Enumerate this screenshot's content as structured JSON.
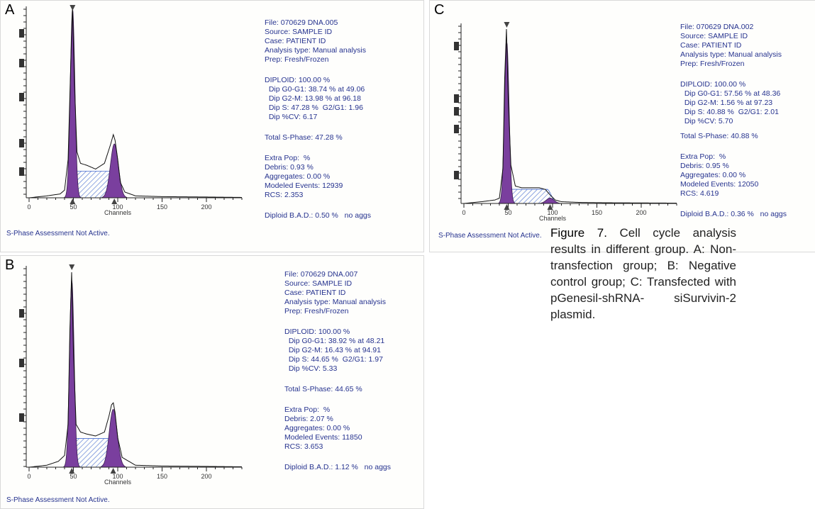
{
  "panels": [
    {
      "letter": "A",
      "file": "File: 070629 DNA.005",
      "source": "Source: SAMPLE ID",
      "case": "Case: PATIENT ID",
      "analysis": "Analysis type: Manual analysis",
      "prep": "Prep: Fresh/Frozen",
      "diploid": "DIPLOID: 100.00 %",
      "g0g1": "  Dip G0-G1: 38.74 % at 49.06",
      "g2m": "  Dip G2-M: 13.98 % at 96.18",
      "s": "  Dip S: 47.28 %  G2/G1: 1.96",
      "cv": "  Dip %CV: 6.17",
      "total_s": "Total S-Phase: 47.28 %",
      "extra_pop": "Extra Pop:  %",
      "debris": "Debris: 0.93 %",
      "aggregates": "Aggregates: 0.00 %",
      "modeled": "Modeled Events: 12939",
      "rcs": "RCS: 2.353",
      "bad": "Diploid B.A.D.: 0.50 %   no aggs",
      "assessment": "S-Phase Assessment Not Active.",
      "x_label": "Channels",
      "x_ticks": [
        "0",
        "50",
        "100",
        "150",
        "200"
      ]
    },
    {
      "letter": "B",
      "file": "File: 070629 DNA.007",
      "source": "Source: SAMPLE ID",
      "case": "Case: PATIENT ID",
      "analysis": "Analysis type: Manual analysis",
      "prep": "Prep: Fresh/Frozen",
      "diploid": "DIPLOID: 100.00 %",
      "g0g1": "  Dip G0-G1: 38.92 % at 48.21",
      "g2m": "  Dip G2-M: 16.43 % at 94.91",
      "s": "  Dip S: 44.65 %  G2/G1: 1.97",
      "cv": "  Dip %CV: 5.33",
      "total_s": "Total S-Phase: 44.65 %",
      "extra_pop": "Extra Pop:  %",
      "debris": "Debris: 2.07 %",
      "aggregates": "Aggregates: 0.00 %",
      "modeled": "Modeled Events: 11850",
      "rcs": "RCS: 3.653",
      "bad": "Diploid B.A.D.: 1.12 %   no aggs",
      "assessment": "S-Phase Assessment Not Active.",
      "x_label": "Channels",
      "x_ticks": [
        "0",
        "50",
        "100",
        "150",
        "200"
      ]
    },
    {
      "letter": "C",
      "file": "File: 070629 DNA.002",
      "source": "Source: SAMPLE ID",
      "case": "Case: PATIENT ID",
      "analysis": "Analysis type: Manual analysis",
      "prep": "Prep: Fresh/Frozen",
      "diploid": "DIPLOID: 100.00 %",
      "g0g1": "  Dip G0-G1: 57.56 % at 48.36",
      "g2m": "  Dip G2-M: 1.56 % at 97.23",
      "s": "  Dip S: 40.88 %  G2/G1: 2.01",
      "cv": "  Dip %CV: 5.70",
      "total_s": "Total S-Phase: 40.88 %",
      "extra_pop": "Extra Pop:  %",
      "debris": "Debris: 0.95 %",
      "aggregates": "Aggregates: 0.00 %",
      "modeled": "Modeled Events: 12050",
      "rcs": "RCS: 4.619",
      "bad": "Diploid B.A.D.: 0.36 %   no aggs",
      "assessment": "S-Phase Assessment Not Active.",
      "x_label": "Channels",
      "x_ticks": [
        "0",
        "50",
        "100",
        "150",
        "200"
      ]
    }
  ],
  "caption": {
    "label": "Figure 7.",
    "text": " Cell cycle analysis results in different group. A: Non-transfection group; B: Negative control group; C: Transfected with pGenesil-shRNA- siSurvivin-2 plasmid."
  },
  "colors": {
    "g1_fill": "#7a3f9e",
    "s_hatch": "#4a6fd0",
    "text_blue": "#26338f",
    "axis": "#222222"
  },
  "chart_data": [
    {
      "type": "area",
      "panel": "A",
      "xlabel": "Channels",
      "xlim": [
        0,
        240
      ],
      "x_ticks": [
        0,
        50,
        100,
        150,
        200
      ],
      "series": [
        {
          "name": "",
          "x": [
            0,
            20,
            35,
            40,
            44,
            47,
            49,
            51,
            54,
            58,
            65,
            75,
            85,
            92,
            95,
            97,
            100,
            103,
            108,
            120,
            150,
            200,
            240
          ],
          "values": [
            0,
            1,
            2,
            4,
            20,
            70,
            100,
            62,
            24,
            18,
            17,
            15,
            18,
            28,
            33,
            30,
            20,
            8,
            3,
            1,
            0.6,
            0.4,
            0.2
          ]
        }
      ],
      "components": {
        "G0-G1": {
          "percent": 38.74,
          "peak_at": 49.06
        },
        "G2-M": {
          "percent": 13.98,
          "peak_at": 96.18
        },
        "S": {
          "percent": 47.28
        }
      }
    },
    {
      "type": "area",
      "panel": "B",
      "xlabel": "Channels",
      "xlim": [
        0,
        240
      ],
      "x_ticks": [
        0,
        50,
        100,
        150,
        200
      ],
      "series": [
        {
          "name": "",
          "x": [
            0,
            20,
            33,
            40,
            44,
            46,
            48,
            50,
            53,
            58,
            65,
            75,
            85,
            90,
            93,
            95,
            97,
            100,
            105,
            120,
            150,
            200,
            240
          ],
          "values": [
            0,
            1,
            3,
            6,
            22,
            70,
            100,
            60,
            22,
            18,
            17,
            16,
            18,
            26,
            32,
            33,
            28,
            15,
            5,
            1,
            0.6,
            0.4,
            0.2
          ]
        }
      ],
      "components": {
        "G0-G1": {
          "percent": 38.92,
          "peak_at": 48.21
        },
        "G2-M": {
          "percent": 16.43,
          "peak_at": 94.91
        },
        "S": {
          "percent": 44.65
        }
      }
    },
    {
      "type": "area",
      "panel": "C",
      "xlabel": "Channels",
      "xlim": [
        0,
        240
      ],
      "x_ticks": [
        0,
        50,
        100,
        150,
        200
      ],
      "series": [
        {
          "name": "",
          "x": [
            0,
            20,
            35,
            40,
            44,
            46,
            48,
            50,
            53,
            58,
            65,
            75,
            85,
            92,
            97,
            103,
            110,
            130,
            160,
            200,
            240
          ],
          "values": [
            0,
            1,
            2,
            3,
            20,
            72,
            100,
            60,
            22,
            10,
            9,
            9,
            9,
            8,
            5,
            2,
            1,
            0.6,
            0.4,
            0.3,
            0.2
          ]
        }
      ],
      "components": {
        "G0-G1": {
          "percent": 57.56,
          "peak_at": 48.36
        },
        "G2-M": {
          "percent": 1.56,
          "peak_at": 97.23
        },
        "S": {
          "percent": 40.88
        }
      }
    }
  ]
}
